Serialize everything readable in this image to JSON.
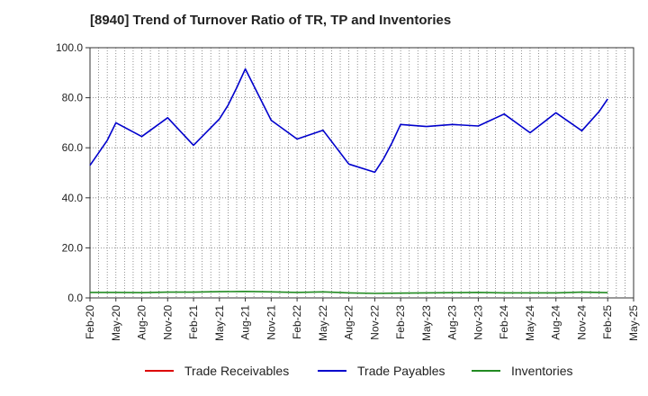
{
  "chart_data": {
    "type": "line",
    "title": "[8940]  Trend of Turnover Ratio of TR, TP and Inventories",
    "xlabel": "",
    "ylabel": "",
    "ylim": [
      0,
      100
    ],
    "yticks": [
      "0.0",
      "20.0",
      "40.0",
      "60.0",
      "80.0",
      "100.0"
    ],
    "x_ticks": [
      "Feb-20",
      "May-20",
      "Aug-20",
      "Nov-20",
      "Feb-21",
      "May-21",
      "Aug-21",
      "Nov-21",
      "Feb-22",
      "May-22",
      "Aug-22",
      "Nov-22",
      "Feb-23",
      "May-23",
      "Aug-23",
      "Nov-23",
      "Feb-24",
      "May-24",
      "Aug-24",
      "Nov-24",
      "Feb-25",
      "May-25"
    ],
    "grid": true,
    "legend_position": "bottom",
    "series": [
      {
        "name": "Trade Receivables",
        "color": "#dd0000",
        "values": []
      },
      {
        "name": "Trade Payables",
        "color": "#0000cc",
        "points": [
          [
            "Feb-20",
            53
          ],
          [
            "Mar-20",
            58
          ],
          [
            "Apr-20",
            63
          ],
          [
            "May-20",
            70
          ],
          [
            "Aug-20",
            64.5
          ],
          [
            "Nov-20",
            72
          ],
          [
            "Feb-21",
            61
          ],
          [
            "May-21",
            71.5
          ],
          [
            "Jun-21",
            77
          ],
          [
            "Jul-21",
            84
          ],
          [
            "Aug-21",
            91.5
          ],
          [
            "Nov-21",
            71
          ],
          [
            "Feb-22",
            63.5
          ],
          [
            "May-22",
            67
          ],
          [
            "Aug-22",
            53.5
          ],
          [
            "Nov-22",
            50.2
          ],
          [
            "Dec-22",
            55.5
          ],
          [
            "Jan-23",
            62
          ],
          [
            "Feb-23",
            69.3
          ],
          [
            "May-23",
            68.5
          ],
          [
            "Aug-23",
            69.3
          ],
          [
            "Nov-23",
            68.7
          ],
          [
            "Feb-24",
            73.5
          ],
          [
            "May-24",
            66
          ],
          [
            "Aug-24",
            74
          ],
          [
            "Nov-24",
            66.8
          ],
          [
            "Jan-25",
            74.5
          ],
          [
            "Feb-25",
            79.5
          ]
        ]
      },
      {
        "name": "Inventories",
        "color": "#228b22",
        "points": [
          [
            "Feb-20",
            2.2
          ],
          [
            "May-20",
            2.2
          ],
          [
            "Aug-20",
            2.1
          ],
          [
            "Nov-20",
            2.3
          ],
          [
            "Feb-21",
            2.3
          ],
          [
            "May-21",
            2.5
          ],
          [
            "Aug-21",
            2.6
          ],
          [
            "Nov-21",
            2.4
          ],
          [
            "Feb-22",
            2.2
          ],
          [
            "May-22",
            2.4
          ],
          [
            "Aug-22",
            2.0
          ],
          [
            "Nov-22",
            1.8
          ],
          [
            "Feb-23",
            1.9
          ],
          [
            "May-23",
            2.0
          ],
          [
            "Aug-23",
            2.1
          ],
          [
            "Nov-23",
            2.2
          ],
          [
            "Feb-24",
            2.0
          ],
          [
            "May-24",
            2.0
          ],
          [
            "Aug-24",
            2.0
          ],
          [
            "Nov-24",
            2.3
          ],
          [
            "Feb-25",
            2.1
          ]
        ]
      }
    ]
  }
}
